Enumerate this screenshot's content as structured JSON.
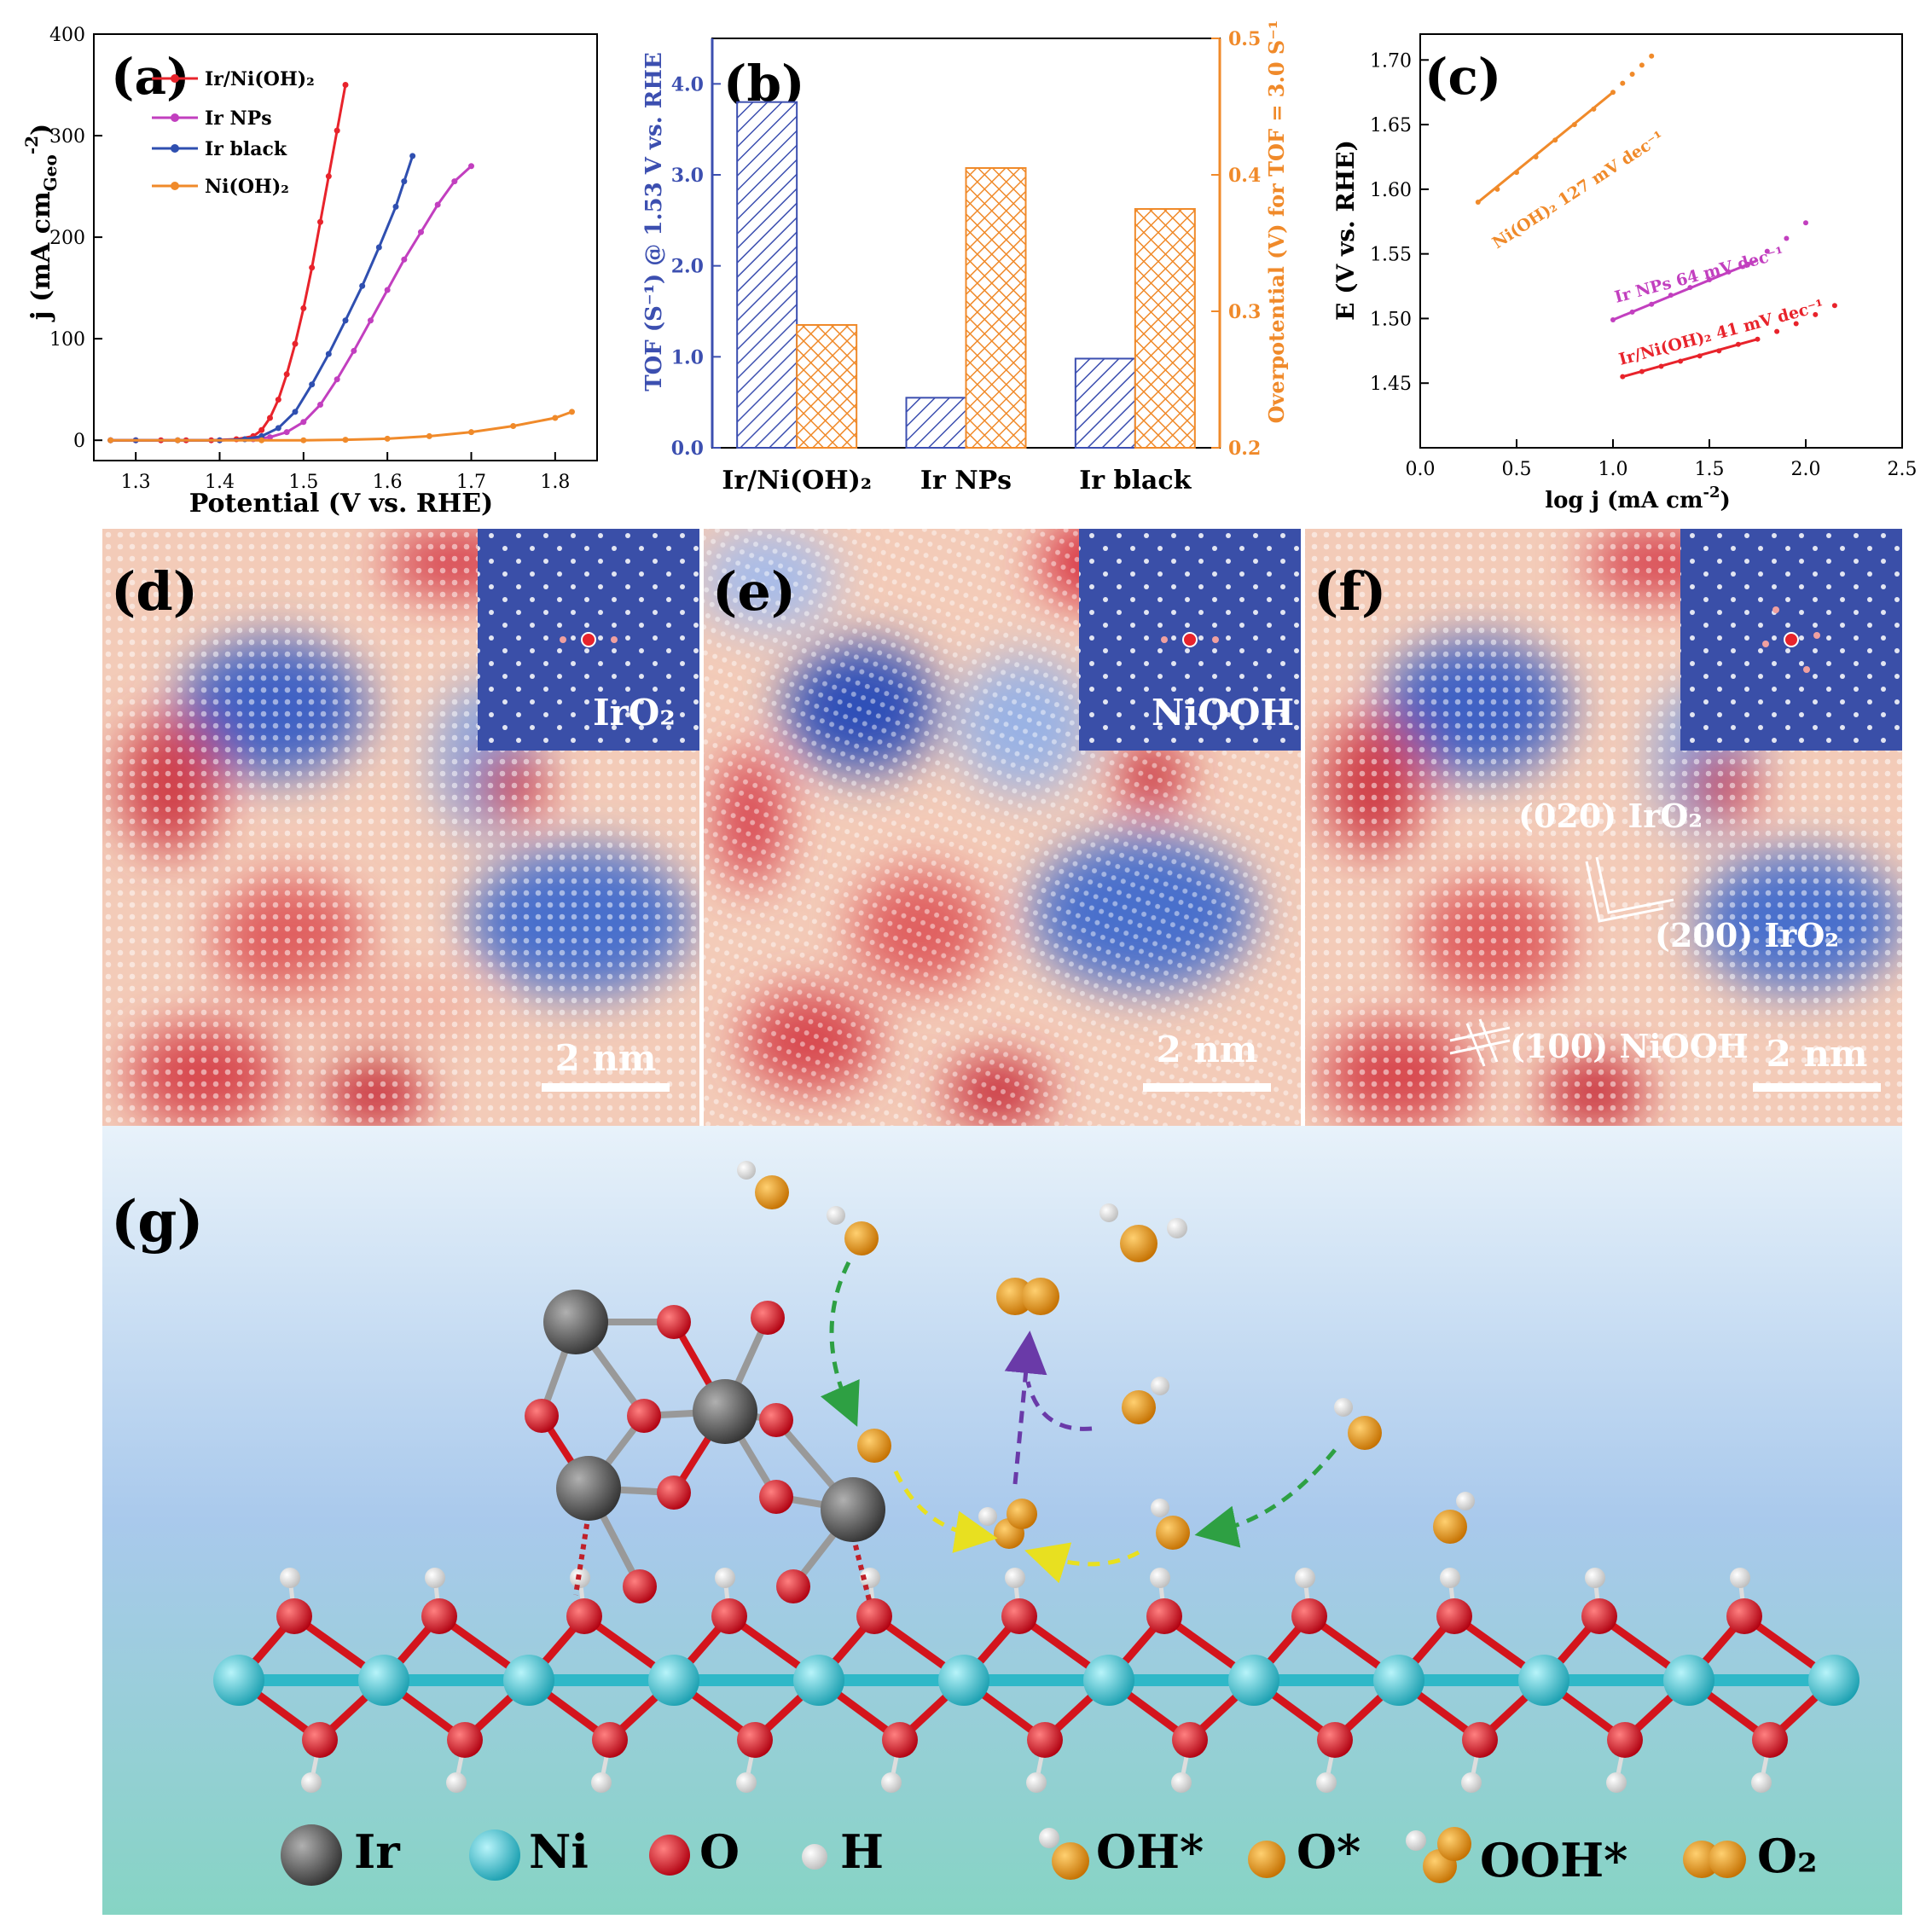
{
  "colors": {
    "red": "#e8232b",
    "magenta": "#c23fbf",
    "blue": "#2f4fb0",
    "orange": "#f08a2a",
    "axis_left_b": "#3c4fb0",
    "axis_right_b": "#f08a2a",
    "inset_bg": "#3a4fa8",
    "ni_atom": "#2fb8c8",
    "o_atom": "#d4141c",
    "ir_atom": "#555555",
    "h_atom": "#f2f2f2",
    "ads_atom": "#f0a020"
  },
  "chart_data": [
    {
      "id": "a",
      "type": "line",
      "panel_label": "(a)",
      "xlabel": "Potential (V vs. RHE)",
      "ylabel": "j (mA cm",
      "ylabel_sub": "Geo",
      "ylabel_sup": "-2",
      "ylabel_close": ")",
      "xlim": [
        1.25,
        1.85
      ],
      "ylim": [
        -20,
        400
      ],
      "xticks": [
        "1.3",
        "1.4",
        "1.5",
        "1.6",
        "1.7",
        "1.8"
      ],
      "yticks": [
        "0",
        "100",
        "200",
        "300",
        "400"
      ],
      "legend": [
        "Ir/Ni(OH)₂",
        "Ir NPs",
        "Ir black",
        "Ni(OH)₂"
      ],
      "series": [
        {
          "name": "Ir/Ni(OH)₂",
          "color": "red",
          "x": [
            1.27,
            1.3,
            1.33,
            1.36,
            1.39,
            1.42,
            1.44,
            1.45,
            1.46,
            1.47,
            1.48,
            1.49,
            1.5,
            1.51,
            1.52,
            1.53,
            1.54,
            1.55
          ],
          "y": [
            0,
            0,
            0,
            0,
            0,
            1,
            4,
            10,
            22,
            40,
            65,
            95,
            130,
            170,
            215,
            260,
            305,
            350
          ]
        },
        {
          "name": "Ir NPs",
          "color": "magenta",
          "x": [
            1.27,
            1.3,
            1.35,
            1.4,
            1.44,
            1.46,
            1.48,
            1.5,
            1.52,
            1.54,
            1.56,
            1.58,
            1.6,
            1.62,
            1.64,
            1.66,
            1.68,
            1.7
          ],
          "y": [
            0,
            0,
            0,
            0,
            1,
            3,
            8,
            18,
            35,
            60,
            88,
            118,
            148,
            178,
            205,
            232,
            255,
            270
          ]
        },
        {
          "name": "Ir black",
          "color": "blue",
          "x": [
            1.27,
            1.3,
            1.35,
            1.4,
            1.43,
            1.45,
            1.47,
            1.49,
            1.51,
            1.53,
            1.55,
            1.57,
            1.59,
            1.61,
            1.62,
            1.63
          ],
          "y": [
            0,
            0,
            0,
            0,
            1,
            4,
            12,
            28,
            55,
            85,
            118,
            152,
            190,
            230,
            255,
            280
          ]
        },
        {
          "name": "Ni(OH)₂",
          "color": "orange",
          "x": [
            1.27,
            1.35,
            1.45,
            1.5,
            1.55,
            1.6,
            1.65,
            1.7,
            1.75,
            1.8,
            1.82
          ],
          "y": [
            0,
            0,
            0,
            0,
            0.5,
            1.5,
            4,
            8,
            14,
            22,
            28
          ]
        }
      ]
    },
    {
      "id": "b",
      "type": "bar",
      "panel_label": "(b)",
      "categories": [
        "Ir/Ni(OH)₂",
        "Ir NPs",
        "Ir black"
      ],
      "ylabel_left": "TOF (S⁻¹) @ 1.53 V vs. RHE",
      "ylabel_right": "Overpotential (V) for TOF = 3.0 S⁻¹",
      "ylim_left": [
        0,
        4.5
      ],
      "ylim_right": [
        0.2,
        0.5
      ],
      "yticks_left": [
        "0.0",
        "1.0",
        "2.0",
        "3.0",
        "4.0"
      ],
      "yticks_right": [
        "0.2",
        "0.3",
        "0.4",
        "0.5"
      ],
      "series": [
        {
          "name": "TOF",
          "axis": "left",
          "values": [
            3.8,
            0.55,
            0.98
          ]
        },
        {
          "name": "Overpotential",
          "axis": "right",
          "values": [
            0.29,
            0.405,
            0.375
          ]
        }
      ]
    },
    {
      "id": "c",
      "type": "scatter",
      "panel_label": "(c)",
      "xlabel": "log j (mA cm",
      "xlabel_sup": "-2",
      "xlabel_close": ")",
      "ylabel": "E (V vs. RHE)",
      "xlim": [
        0,
        2.5
      ],
      "ylim": [
        1.4,
        1.72
      ],
      "xticks": [
        "0.0",
        "0.5",
        "1.0",
        "1.5",
        "2.0",
        "2.5"
      ],
      "yticks": [
        "1.45",
        "1.50",
        "1.55",
        "1.60",
        "1.65",
        "1.70"
      ],
      "series": [
        {
          "name": "Ni(OH)₂",
          "color": "orange",
          "annotation": "Ni(OH)₂ 127 mV dec⁻¹",
          "fit_x": [
            0.3,
            1.0
          ],
          "fit_y": [
            1.59,
            1.675
          ],
          "x": [
            0.3,
            0.4,
            0.5,
            0.6,
            0.7,
            0.8,
            0.9,
            1.0,
            1.05,
            1.1,
            1.15,
            1.2
          ],
          "y": [
            1.59,
            1.6,
            1.613,
            1.625,
            1.638,
            1.65,
            1.662,
            1.675,
            1.682,
            1.689,
            1.696,
            1.703
          ]
        },
        {
          "name": "Ir NPs",
          "color": "magenta",
          "annotation": "Ir NPs 64 mV dec⁻¹",
          "fit_x": [
            1.0,
            1.75
          ],
          "fit_y": [
            1.499,
            1.545
          ],
          "x": [
            1.0,
            1.1,
            1.2,
            1.3,
            1.4,
            1.5,
            1.6,
            1.7,
            1.8,
            1.9,
            2.0
          ],
          "y": [
            1.499,
            1.505,
            1.511,
            1.518,
            1.524,
            1.53,
            1.536,
            1.542,
            1.552,
            1.562,
            1.574
          ]
        },
        {
          "name": "Ir/Ni(OH)₂",
          "color": "red",
          "annotation": "Ir/Ni(OH)₂ 41 mV dec⁻¹",
          "fit_x": [
            1.05,
            1.75
          ],
          "fit_y": [
            1.455,
            1.484
          ],
          "x": [
            1.05,
            1.15,
            1.25,
            1.35,
            1.45,
            1.55,
            1.65,
            1.75,
            1.85,
            1.95,
            2.05,
            2.15
          ],
          "y": [
            1.455,
            1.459,
            1.463,
            1.467,
            1.471,
            1.475,
            1.48,
            1.484,
            1.49,
            1.496,
            1.503,
            1.51
          ]
        }
      ]
    }
  ],
  "tem_panels": [
    {
      "label": "(d)",
      "inset_label": "IrO₂",
      "scale": "2 nm"
    },
    {
      "label": "(e)",
      "inset_label": "NiOOH",
      "scale": "2 nm"
    },
    {
      "label": "(f)",
      "inset_label": "",
      "scale": "2 nm",
      "annotations": [
        "(020) IrO₂",
        "(200) IrO₂",
        "(100) NiOOH"
      ]
    }
  ],
  "scheme": {
    "label": "(g)",
    "legend": [
      "Ir",
      "Ni",
      "O",
      "H",
      "OH*",
      "O*",
      "OOH*",
      "O₂"
    ]
  }
}
